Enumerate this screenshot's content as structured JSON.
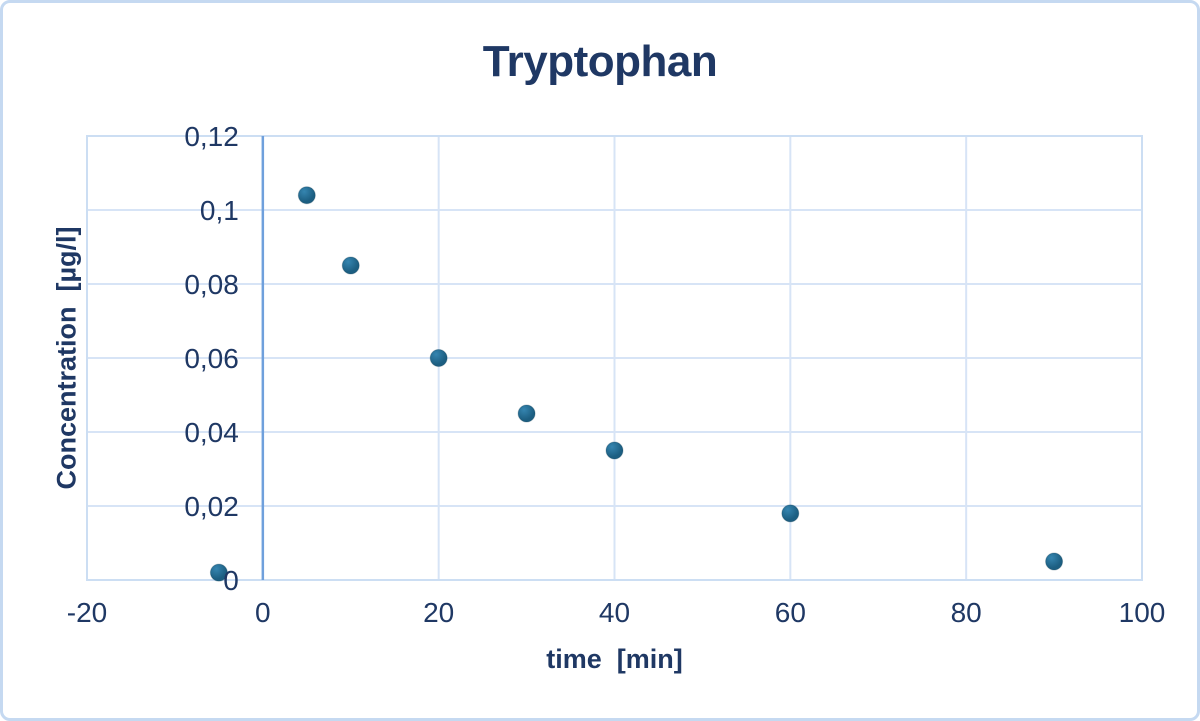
{
  "page": {
    "title": "Tryptophan"
  },
  "chart_data": {
    "type": "scatter",
    "title": "Tryptophan",
    "xlabel": "time  [min]",
    "ylabel": "Concentration  [µg/l]",
    "xlim": [
      -20,
      100
    ],
    "ylim": [
      0,
      0.12
    ],
    "x_ticks": [
      -20,
      0,
      20,
      40,
      60,
      80,
      100
    ],
    "x_tick_labels": [
      "-20",
      "0",
      "20",
      "40",
      "60",
      "80",
      "100"
    ],
    "y_ticks": [
      0,
      0.02,
      0.04,
      0.06,
      0.08,
      0.1,
      0.12
    ],
    "y_tick_labels": [
      "0",
      "0,02",
      "0,04",
      "0,06",
      "0,08",
      "0,1",
      "0,12"
    ],
    "decimal_separator": ",",
    "grid": true,
    "legend_position": "none",
    "axis_cross_x": 0,
    "series": [
      {
        "name": "Tryptophan",
        "points": [
          {
            "x": -5,
            "y": 0.002
          },
          {
            "x": 5,
            "y": 0.104
          },
          {
            "x": 10,
            "y": 0.085
          },
          {
            "x": 20,
            "y": 0.06
          },
          {
            "x": 30,
            "y": 0.045
          },
          {
            "x": 40,
            "y": 0.035
          },
          {
            "x": 60,
            "y": 0.018
          },
          {
            "x": 90,
            "y": 0.005
          }
        ]
      }
    ]
  },
  "colors": {
    "text": "#1F3864",
    "gridline": "#D7E4F6",
    "plot_border": "#CCDEF3",
    "axis_line": "#6FA0DC",
    "frame_border": "#C5D9F1",
    "marker_fill": "#1C5E81",
    "marker_highlight": "#3585B0",
    "background": "#FFFFFF"
  }
}
